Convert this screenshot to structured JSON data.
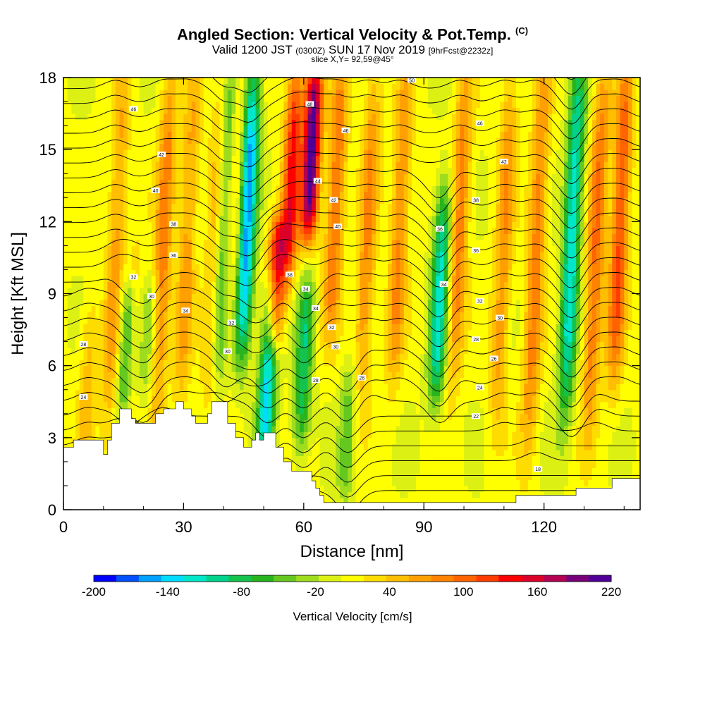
{
  "chart_data": {
    "type": "heatmap",
    "title": "Angled Section: Vertical Velocity & Pot.Temp.",
    "title_suffix": "(C)",
    "subtitle_main_a": "Valid 1200 JST",
    "subtitle_small_a": "(0300Z)",
    "subtitle_main_b": "SUN 17 Nov 2019",
    "subtitle_small_b": "[9hrFcst@2232z]",
    "subtitle2": "slice X,Y= 92,59@45°",
    "xlabel": "Distance [nm]",
    "ylabel": "Height [Kft MSL]",
    "xlim": [
      0,
      144
    ],
    "ylim": [
      0,
      18
    ],
    "xticks": [
      0,
      30,
      60,
      90,
      120
    ],
    "yticks": [
      0,
      3,
      6,
      9,
      12,
      15,
      18
    ],
    "colorbar_label": "Vertical Velocity [cm/s]",
    "colorbar_ticks": [
      -200,
      -140,
      -80,
      -20,
      40,
      100,
      160,
      220
    ],
    "colorbar_range": [
      -200,
      220
    ],
    "colorbar_colors": [
      "#0000ff",
      "#0050ff",
      "#00a0ff",
      "#00dcff",
      "#00e6c8",
      "#00d28c",
      "#14c24e",
      "#28b41e",
      "#64c81e",
      "#a0dc1e",
      "#dcf014",
      "#ffff00",
      "#ffdc00",
      "#ffbe00",
      "#ffa000",
      "#ff8200",
      "#ff6400",
      "#ff3c00",
      "#ff0000",
      "#dc0028",
      "#b40050",
      "#780078",
      "#500096"
    ],
    "updrafts": [
      {
        "x": 6,
        "zmin": 3.0,
        "zmax": 8,
        "w": 40
      },
      {
        "x": 13,
        "zmin": 3.5,
        "zmax": 18,
        "w": 60
      },
      {
        "x": 17,
        "zmin": 4.0,
        "zmax": 10,
        "w": 60
      },
      {
        "x": 25,
        "zmin": 4.5,
        "zmax": 18,
        "w": 80
      },
      {
        "x": 31,
        "zmin": 5.0,
        "zmax": 18,
        "w": 60
      },
      {
        "x": 38,
        "zmin": 5.0,
        "zmax": 18,
        "w": 55
      },
      {
        "x": 43,
        "zmin": 8.0,
        "zmax": 18,
        "w": 40
      },
      {
        "x": 53,
        "zmin": 7.5,
        "zmax": 11.5,
        "w": 150
      },
      {
        "x": 57,
        "zmin": 10.0,
        "zmax": 18,
        "w": 130
      },
      {
        "x": 62,
        "zmin": 12.0,
        "zmax": 18,
        "w": 210
      },
      {
        "x": 68,
        "zmin": 8.0,
        "zmax": 18,
        "w": 90
      },
      {
        "x": 76,
        "zmin": 5.0,
        "zmax": 18,
        "w": 70
      },
      {
        "x": 84,
        "zmin": 6.0,
        "zmax": 18,
        "w": 75
      },
      {
        "x": 99,
        "zmin": 6.0,
        "zmax": 18,
        "w": 80
      },
      {
        "x": 110,
        "zmin": 4.0,
        "zmax": 18,
        "w": 65
      },
      {
        "x": 118,
        "zmin": 3.0,
        "zmax": 18,
        "w": 80
      },
      {
        "x": 133,
        "zmin": 4.0,
        "zmax": 18,
        "w": 90
      },
      {
        "x": 139,
        "zmin": 6.0,
        "zmax": 18,
        "w": 110
      }
    ],
    "downdrafts": [
      {
        "x": 16,
        "zmin": 4.5,
        "zmax": 9,
        "w": -110
      },
      {
        "x": 21,
        "zmin": 5.0,
        "zmax": 9,
        "w": -40
      },
      {
        "x": 40,
        "zmin": 6.0,
        "zmax": 18,
        "w": -80
      },
      {
        "x": 46,
        "zmin": 7.0,
        "zmax": 18,
        "w": -160
      },
      {
        "x": 51,
        "zmin": 2.5,
        "zmax": 9,
        "w": -140
      },
      {
        "x": 60,
        "zmin": 3.0,
        "zmax": 9,
        "w": -90
      },
      {
        "x": 71,
        "zmin": 1.0,
        "zmax": 5.5,
        "w": -50
      },
      {
        "x": 94,
        "zmin": 5.0,
        "zmax": 13,
        "w": -120
      },
      {
        "x": 127,
        "zmin": 4.5,
        "zmax": 18,
        "w": -130
      }
    ],
    "terrain": [
      [
        0,
        2.6
      ],
      [
        2.5,
        2.6
      ],
      [
        2.5,
        2.9
      ],
      [
        10,
        2.9
      ],
      [
        10,
        2.3
      ],
      [
        11,
        2.3
      ],
      [
        11,
        2.9
      ],
      [
        12,
        2.9
      ],
      [
        12,
        3.6
      ],
      [
        14,
        3.6
      ],
      [
        14,
        4.2
      ],
      [
        17,
        4.2
      ],
      [
        17,
        3.8
      ],
      [
        18,
        3.8
      ],
      [
        18,
        3.6
      ],
      [
        23,
        3.6
      ],
      [
        23,
        4.0
      ],
      [
        25,
        4.0
      ],
      [
        25,
        4.2
      ],
      [
        28,
        4.2
      ],
      [
        28,
        4.5
      ],
      [
        30,
        4.5
      ],
      [
        30,
        4.2
      ],
      [
        32,
        4.2
      ],
      [
        32,
        3.9
      ],
      [
        33,
        3.9
      ],
      [
        33,
        3.6
      ],
      [
        36,
        3.6
      ],
      [
        36,
        4.0
      ],
      [
        37,
        4.0
      ],
      [
        37,
        4.5
      ],
      [
        41,
        4.5
      ],
      [
        41,
        3.6
      ],
      [
        43,
        3.6
      ],
      [
        43,
        3.0
      ],
      [
        45,
        3.0
      ],
      [
        45,
        2.6
      ],
      [
        47,
        2.6
      ],
      [
        47,
        2.9
      ],
      [
        48,
        2.9
      ],
      [
        48,
        3.2
      ],
      [
        49,
        3.2
      ],
      [
        49,
        2.9
      ],
      [
        50,
        2.9
      ],
      [
        50,
        3.2
      ],
      [
        53,
        3.2
      ],
      [
        53,
        2.6
      ],
      [
        55,
        2.6
      ],
      [
        55,
        2.0
      ],
      [
        57,
        2.0
      ],
      [
        57,
        1.6
      ],
      [
        62,
        1.6
      ],
      [
        62,
        1.2
      ],
      [
        63,
        1.2
      ],
      [
        63,
        0.9
      ],
      [
        64,
        0.9
      ],
      [
        64,
        0.6
      ],
      [
        65,
        0.6
      ],
      [
        65,
        0.3
      ],
      [
        113,
        0.3
      ],
      [
        113,
        0.6
      ],
      [
        128,
        0.6
      ],
      [
        128,
        0.9
      ],
      [
        137,
        0.9
      ],
      [
        137,
        1.3
      ],
      [
        144,
        1.3
      ]
    ],
    "theta_labels": [
      {
        "x": 5,
        "z": 4.7,
        "v": "24"
      },
      {
        "x": 5,
        "z": 6.9,
        "v": "28"
      },
      {
        "x": 17.5,
        "z": 9.7,
        "v": "32"
      },
      {
        "x": 22,
        "z": 8.9,
        "v": "30"
      },
      {
        "x": 30.5,
        "z": 8.3,
        "v": "34"
      },
      {
        "x": 41,
        "z": 6.6,
        "v": "30"
      },
      {
        "x": 42,
        "z": 7.8,
        "v": "32"
      },
      {
        "x": 27.5,
        "z": 10.6,
        "v": "36"
      },
      {
        "x": 27.5,
        "z": 11.9,
        "v": "38"
      },
      {
        "x": 23,
        "z": 13.3,
        "v": "40"
      },
      {
        "x": 24.5,
        "z": 14.8,
        "v": "42"
      },
      {
        "x": 17.5,
        "z": 16.7,
        "v": "46"
      },
      {
        "x": 60.5,
        "z": 9.2,
        "v": "34"
      },
      {
        "x": 63,
        "z": 8.4,
        "v": "34"
      },
      {
        "x": 67,
        "z": 7.6,
        "v": "32"
      },
      {
        "x": 68,
        "z": 6.8,
        "v": "30"
      },
      {
        "x": 63,
        "z": 5.4,
        "v": "28"
      },
      {
        "x": 74.5,
        "z": 5.5,
        "v": "28"
      },
      {
        "x": 56.5,
        "z": 9.8,
        "v": "38"
      },
      {
        "x": 68.5,
        "z": 11.8,
        "v": "40"
      },
      {
        "x": 67.5,
        "z": 12.9,
        "v": "42"
      },
      {
        "x": 63.5,
        "z": 13.7,
        "v": "44"
      },
      {
        "x": 70.5,
        "z": 15.8,
        "v": "46"
      },
      {
        "x": 61.5,
        "z": 16.9,
        "v": "48"
      },
      {
        "x": 87,
        "z": 17.9,
        "v": "50"
      },
      {
        "x": 94,
        "z": 11.7,
        "v": "36"
      },
      {
        "x": 95,
        "z": 9.4,
        "v": "34"
      },
      {
        "x": 103,
        "z": 10.8,
        "v": "36"
      },
      {
        "x": 104,
        "z": 8.7,
        "v": "32"
      },
      {
        "x": 109,
        "z": 8.0,
        "v": "30"
      },
      {
        "x": 103,
        "z": 7.1,
        "v": "28"
      },
      {
        "x": 107.5,
        "z": 6.3,
        "v": "26"
      },
      {
        "x": 104,
        "z": 5.1,
        "v": "24"
      },
      {
        "x": 103,
        "z": 3.9,
        "v": "22"
      },
      {
        "x": 103,
        "z": 12.9,
        "v": "38"
      },
      {
        "x": 110,
        "z": 14.5,
        "v": "42"
      },
      {
        "x": 104,
        "z": 16.1,
        "v": "46"
      },
      {
        "x": 118.5,
        "z": 1.7,
        "v": "18"
      }
    ]
  }
}
